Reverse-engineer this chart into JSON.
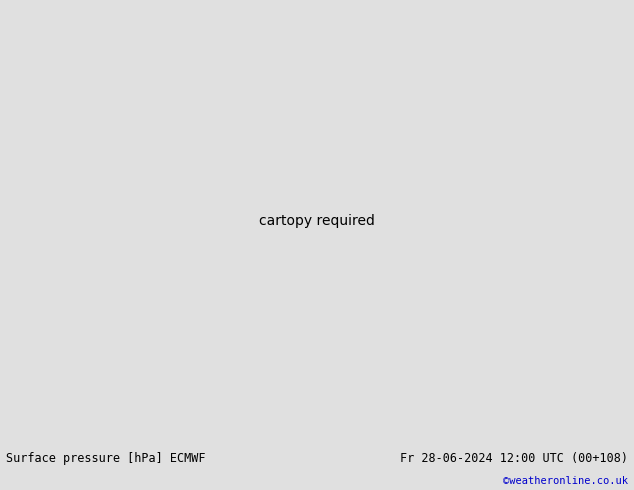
{
  "title_left": "Surface pressure [hPa] ECMWF",
  "title_right": "Fr 28-06-2024 12:00 UTC (00+108)",
  "credit": "©weatheronline.co.uk",
  "ocean_color": "#c8d8e0",
  "land_color": "#c8e0a0",
  "mountain_color": "#a0a890",
  "sea_color": "#b8ccd8",
  "fig_width": 6.34,
  "fig_height": 4.9,
  "dpi": 100,
  "footer_bg": "#e0e0e0",
  "footer_text_color": "#000000",
  "credit_color": "#0000cc",
  "black_line_color": "#000000",
  "red_line_color": "#cc0000",
  "blue_line_color": "#0055cc"
}
